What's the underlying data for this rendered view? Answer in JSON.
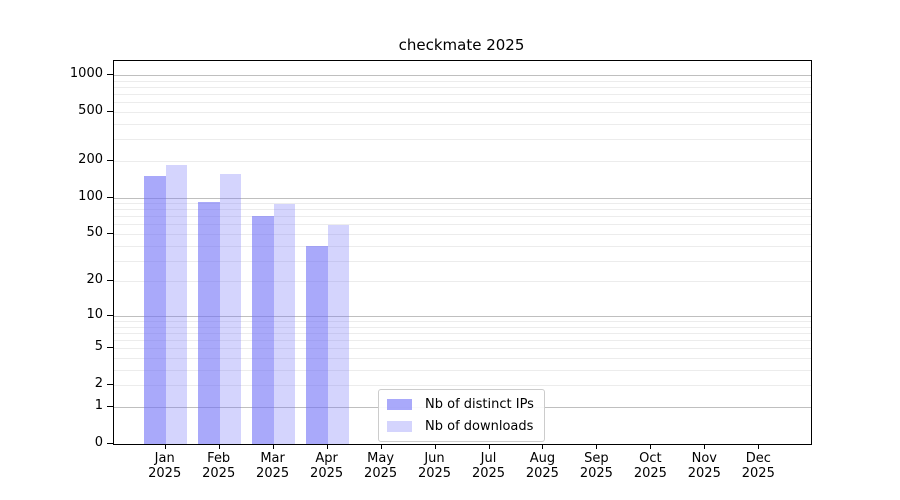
{
  "title": "checkmate 2025",
  "legend": {
    "items": [
      {
        "label": "Nb of distinct IPs",
        "color": "rgba(111,111,247,0.6)",
        "color_hex": "#a9a9fa"
      },
      {
        "label": "Nb of downloads",
        "color": "rgba(111,111,247,0.3)",
        "color_hex": "#d4d4fc"
      }
    ]
  },
  "chart_data": {
    "type": "bar",
    "title": "checkmate 2025",
    "x_categories": [
      "Jan",
      "Feb",
      "Mar",
      "Apr",
      "May",
      "Jun",
      "Jul",
      "Aug",
      "Sep",
      "Oct",
      "Nov",
      "Dec"
    ],
    "x_year_label": "2025",
    "series": [
      {
        "name": "Nb of distinct IPs",
        "color": "rgba(111,111,247,0.6)",
        "values": [
          150,
          92,
          71,
          40,
          null,
          null,
          null,
          null,
          null,
          null,
          null,
          null
        ]
      },
      {
        "name": "Nb of downloads",
        "color": "rgba(111,111,247,0.3)",
        "values": [
          185,
          155,
          88,
          59,
          null,
          null,
          null,
          null,
          null,
          null,
          null,
          null
        ]
      }
    ],
    "yscale": "log1p",
    "ylim": [
      0,
      1300
    ],
    "yticks": [
      0,
      1,
      2,
      5,
      10,
      20,
      50,
      100,
      200,
      500,
      1000
    ],
    "grid": {
      "major_at": [
        1,
        10,
        100,
        1000
      ],
      "minor_at": [
        2,
        3,
        4,
        5,
        6,
        7,
        8,
        9,
        20,
        30,
        40,
        50,
        60,
        70,
        80,
        90,
        200,
        300,
        400,
        500,
        600,
        700,
        800,
        900
      ],
      "major_color": "#bfbfbf",
      "minor_color": "#ececec"
    },
    "legend_position": "lower center",
    "xlabel": "",
    "ylabel": ""
  }
}
